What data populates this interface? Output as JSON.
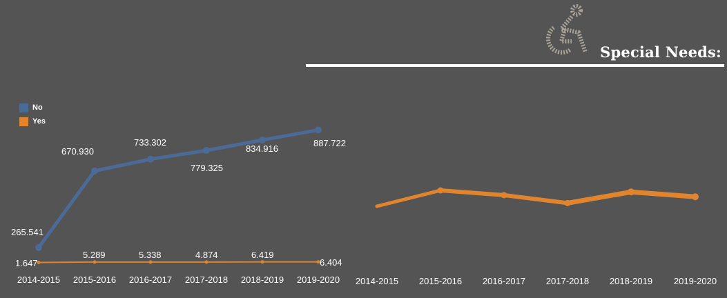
{
  "header": {
    "title": "Special Needs:"
  },
  "icon": {
    "name": "wheelchair-icon"
  },
  "colors": {
    "no": "#4c6a96",
    "yes": "#e0852e",
    "background": "#545454"
  },
  "chart_data": [
    {
      "type": "line",
      "title": "",
      "legend": "top-left",
      "categories": [
        "2014-2015",
        "2015-2016",
        "2016-2017",
        "2017-2018",
        "2018-2019",
        "2019-2020"
      ],
      "series": [
        {
          "name": "No",
          "values": [
            265.541,
            670.93,
            733.302,
            779.325,
            834.916,
            887.722
          ],
          "labels": [
            "265.541",
            "670.930",
            "733.302",
            "779.325",
            "834.916",
            "887.722"
          ]
        },
        {
          "name": "Yes",
          "values": [
            1.647,
            5.289,
            5.338,
            4.874,
            6.419,
            6.404
          ],
          "labels": [
            "1.647",
            "5.289",
            "5.338",
            "4.874",
            "6.419",
            "6.404"
          ]
        }
      ],
      "grid": false
    },
    {
      "type": "line",
      "title": "",
      "categories": [
        "2014-2015",
        "2015-2016",
        "2016-2017",
        "2017-2018",
        "2018-2019",
        "2019-2020"
      ],
      "series": [
        {
          "name": "",
          "values": [
            0.62,
            0.72,
            0.69,
            0.64,
            0.71,
            0.68
          ]
        }
      ],
      "grid": false
    }
  ]
}
